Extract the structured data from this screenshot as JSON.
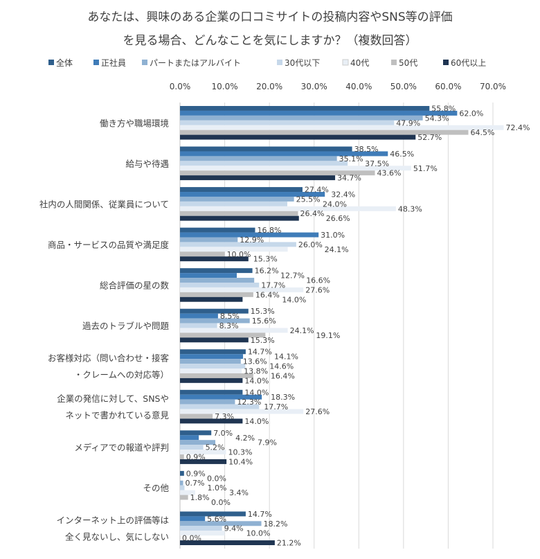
{
  "chart_data": {
    "type": "bar",
    "orientation": "horizontal",
    "title_lines": [
      "あなたは、興味のある企業の口コミサイトの投稿内容やSNS等の評価",
      "を見る場合、どんなことを気にしますか？（複数回答）"
    ],
    "xlim": [
      0,
      70
    ],
    "x_ticks": [
      "0.0%",
      "10.0%",
      "20.0%",
      "30.0%",
      "40.0%",
      "50.0%",
      "60.0%",
      "70.0%"
    ],
    "grid": "vertical",
    "legend_placement": "top",
    "categories": [
      [
        "働き方や職場環境"
      ],
      [
        "給与や待遇"
      ],
      [
        "社内の人間関係、従業員について"
      ],
      [
        "商品・サービスの品質や満足度"
      ],
      [
        "総合評価の星の数"
      ],
      [
        "過去のトラブルや問題"
      ],
      [
        "お客様対応（問い合わせ・接客",
        "・クレームへの対応等）"
      ],
      [
        "企業の発信に対して、SNSや",
        "ネットで書かれている意見"
      ],
      [
        "メディアでの報道や評判"
      ],
      [
        "その他"
      ],
      [
        "インターネット上の評価等は",
        "全く見ないし、気にしない"
      ]
    ],
    "series": [
      {
        "name": "全体",
        "color": "#2f5f8c",
        "values": [
          55.8,
          38.5,
          27.4,
          16.8,
          16.2,
          15.3,
          14.7,
          14.0,
          7.0,
          0.9,
          14.7
        ]
      },
      {
        "name": "正社員",
        "color": "#3f7cb8",
        "values": [
          62.0,
          46.5,
          32.4,
          31.0,
          12.7,
          8.5,
          14.1,
          18.3,
          4.2,
          0.0,
          5.6
        ]
      },
      {
        "name": "パートまたはアルバイト",
        "color": "#8fb1d2",
        "values": [
          54.3,
          35.1,
          25.5,
          12.9,
          16.6,
          15.6,
          13.6,
          12.3,
          7.9,
          0.7,
          18.2
        ]
      },
      {
        "name": "30代以下",
        "color": "#c6d8ea",
        "values": [
          47.9,
          37.5,
          24.0,
          26.0,
          17.7,
          8.3,
          14.6,
          17.7,
          5.2,
          1.0,
          9.4
        ]
      },
      {
        "name": "40代",
        "color": "#e9eff6",
        "values": [
          72.4,
          51.7,
          48.3,
          24.1,
          27.6,
          24.1,
          13.8,
          27.6,
          10.3,
          3.4,
          10.0
        ]
      },
      {
        "name": "50代",
        "color": "#bfbfbf",
        "values": [
          64.5,
          43.6,
          26.4,
          10.0,
          16.4,
          19.1,
          16.4,
          7.3,
          0.9,
          1.8,
          0.0
        ]
      },
      {
        "name": "60代以上",
        "color": "#1f3552",
        "values": [
          52.7,
          34.7,
          26.6,
          15.3,
          14.0,
          15.3,
          14.0,
          14.0,
          10.4,
          0.0,
          21.2
        ]
      }
    ]
  }
}
